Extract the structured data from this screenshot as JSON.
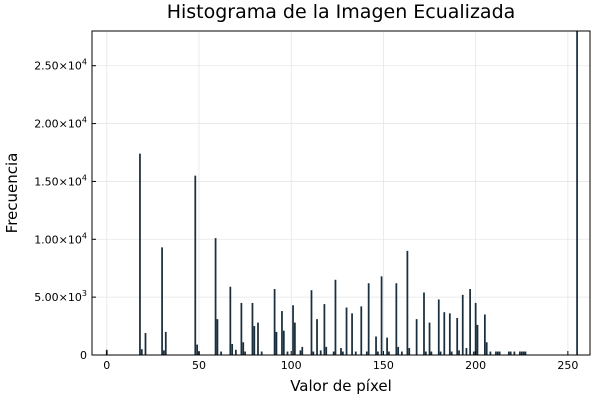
{
  "chart_data": {
    "type": "bar",
    "title": "Histograma de la Imagen Ecualizada",
    "xlabel": "Valor de píxel",
    "ylabel": "Frecuencia",
    "xlim": [
      -8,
      262
    ],
    "ylim": [
      0,
      28000
    ],
    "xticks": [
      0,
      50,
      100,
      150,
      200,
      250
    ],
    "xtick_labels": [
      "0",
      "50",
      "100",
      "150",
      "200",
      "250"
    ],
    "yticks": [
      0,
      5000,
      10000,
      15000,
      20000,
      25000
    ],
    "ytick_labels": [
      {
        "mantissa": "0",
        "exp": ""
      },
      {
        "mantissa": "5.00×10",
        "exp": "3"
      },
      {
        "mantissa": "1.00×10",
        "exp": "4"
      },
      {
        "mantissa": "1.50×10",
        "exp": "4"
      },
      {
        "mantissa": "2.00×10",
        "exp": "4"
      },
      {
        "mantissa": "2.50×10",
        "exp": "4"
      }
    ],
    "grid": true,
    "legend": false,
    "color": "#1a2e3d",
    "bin_width": 1,
    "x": [
      0,
      18,
      19,
      21,
      30,
      31,
      32,
      48,
      49,
      50,
      59,
      60,
      62,
      67,
      68,
      70,
      73,
      74,
      75,
      79,
      80,
      82,
      84,
      91,
      92,
      95,
      96,
      98,
      101,
      102,
      105,
      106,
      111,
      112,
      114,
      116,
      118,
      119,
      123,
      124,
      127,
      128,
      130,
      133,
      135,
      138,
      141,
      142,
      146,
      147,
      149,
      152,
      153,
      157,
      158,
      160,
      163,
      164,
      168,
      172,
      173,
      175,
      176,
      180,
      181,
      183,
      186,
      187,
      190,
      191,
      193,
      195,
      197,
      199,
      200,
      201,
      205,
      206,
      208,
      211,
      212,
      213,
      218,
      219,
      221,
      224,
      225,
      226,
      227,
      255
    ],
    "values": [
      450,
      17400,
      500,
      1900,
      9300,
      400,
      2000,
      15500,
      900,
      300,
      10100,
      3100,
      300,
      5900,
      950,
      450,
      4500,
      1100,
      300,
      4500,
      2500,
      2800,
      300,
      5700,
      2000,
      3800,
      2100,
      300,
      4300,
      2800,
      400,
      700,
      5600,
      300,
      3100,
      400,
      4400,
      700,
      300,
      6500,
      600,
      300,
      4100,
      3600,
      300,
      4200,
      300,
      6200,
      1600,
      300,
      6800,
      1500,
      300,
      6200,
      700,
      300,
      9000,
      600,
      3100,
      5400,
      300,
      2800,
      300,
      4800,
      300,
      3700,
      3600,
      300,
      3200,
      400,
      5200,
      600,
      5700,
      300,
      4500,
      2600,
      3500,
      1100,
      300,
      300,
      300,
      300,
      300,
      300,
      300,
      300,
      300,
      300,
      300,
      28000
    ]
  }
}
